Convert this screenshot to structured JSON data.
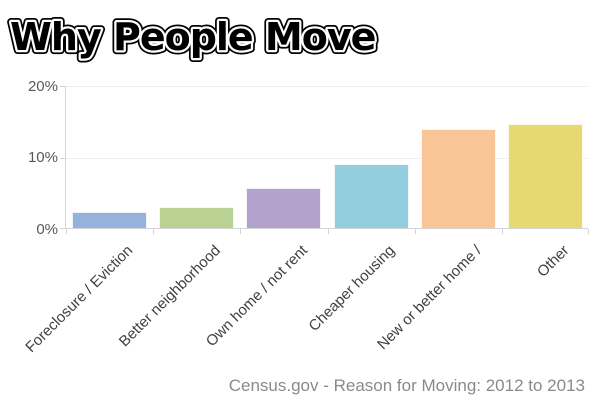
{
  "title": "Why People Move",
  "footer": "Census.gov - Reason for Moving: 2012 to 2013",
  "chart_data": {
    "type": "bar",
    "title": "Why People Move",
    "categories": [
      "Foreclosure / Eviction",
      "Better neighborhood",
      "Own home / not rent",
      "Cheaper housing",
      "New or better home /",
      "Other"
    ],
    "values": [
      2.2,
      2.9,
      5.6,
      9.0,
      13.9,
      14.5
    ],
    "bar_colors": [
      "#94b3da",
      "#b9d192",
      "#b3a3cc",
      "#92cedd",
      "#f9c496",
      "#e7d972"
    ],
    "xlabel": "",
    "ylabel": "",
    "ylim": [
      0,
      20
    ],
    "yticks": [
      "0%",
      "10%",
      "20%"
    ],
    "grid": true,
    "legend": false,
    "x_labels_rotation_deg": -45,
    "source": "Census.gov - Reason for Moving: 2012 to 2013"
  },
  "colors": {
    "axis": "#d4d4d4",
    "gridline": "#efefef",
    "ytick_label": "#595959",
    "xtick_label": "#404040",
    "footer_text": "#8a8a8a",
    "background": "#ffffff"
  }
}
